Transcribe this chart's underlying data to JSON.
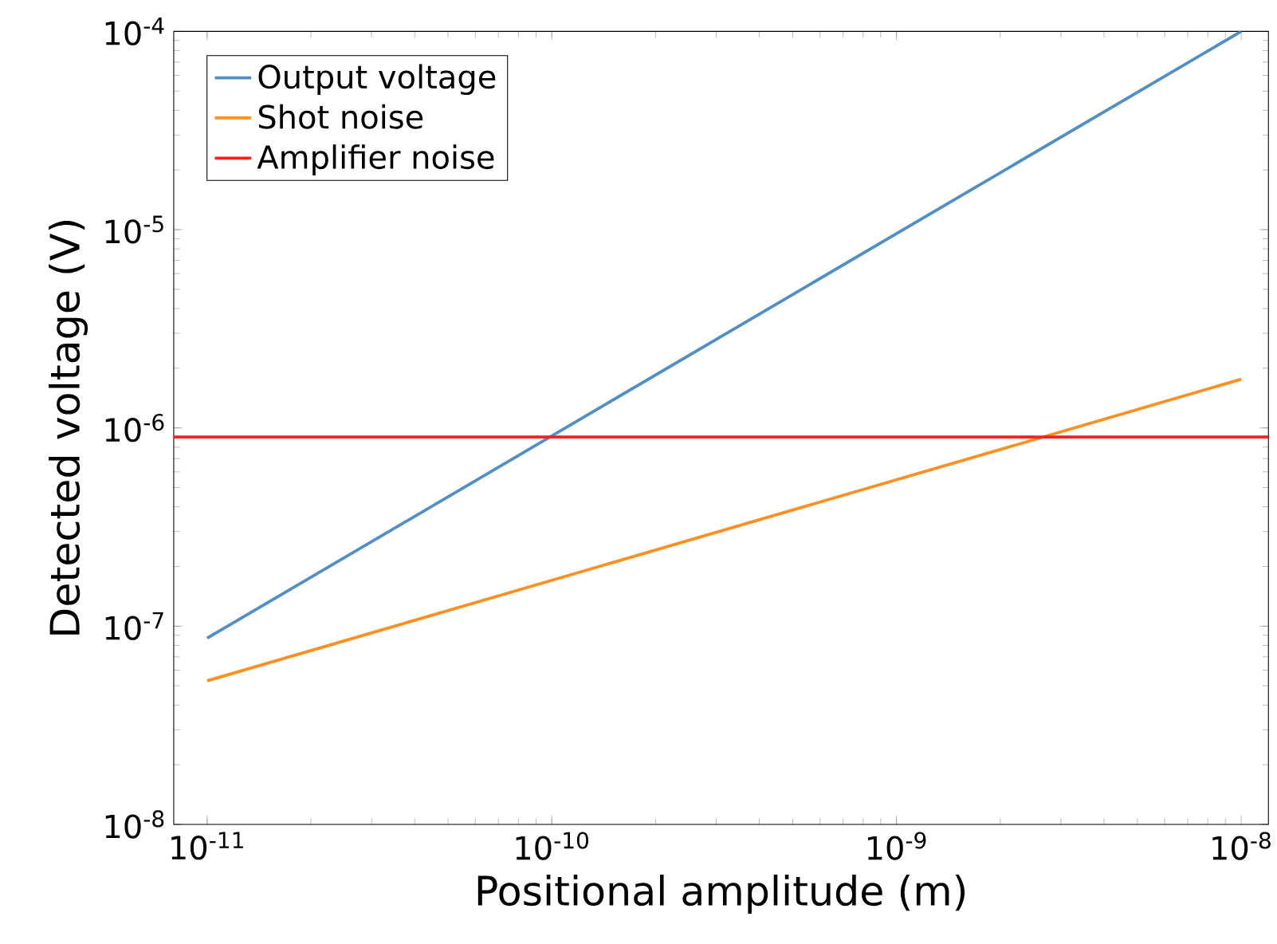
{
  "chart_data": {
    "type": "line",
    "xlabel": "Positional amplitude (m)",
    "ylabel": "Detected voltage (V)",
    "log": "xy",
    "legend": "top left",
    "grid": false,
    "line_style": "solid",
    "marker": "none",
    "xlim": [
      8e-12,
      1.2e-08
    ],
    "ylim": [
      1e-08,
      0.0001
    ],
    "xticks": [
      {
        "value": 1e-11,
        "label": "10$^{-11}$"
      },
      {
        "value": 1e-10,
        "label": "10$^{-10}$"
      },
      {
        "value": 1e-09,
        "label": "10$^{-9}$"
      },
      {
        "value": 1e-08,
        "label": "10$^{-8}$"
      }
    ],
    "yticks": [
      {
        "value": 1e-08,
        "label": "10$^{-8}$"
      },
      {
        "value": 1e-07,
        "label": "10$^{-7}$"
      },
      {
        "value": 1e-06,
        "label": "10$^{-6}$"
      },
      {
        "value": 1e-05,
        "label": "10$^{-5}$"
      },
      {
        "value": 0.0001,
        "label": "10$^{-4}$"
      }
    ],
    "series": [
      {
        "name": "Output voltage",
        "color": "#4f8fc7",
        "x": [
          1e-11,
          1e-08
        ],
        "values": [
          8.7e-08,
          0.0001
        ]
      },
      {
        "name": "Shot noise",
        "color": "#ff8f1f",
        "x": [
          1e-11,
          1e-08
        ],
        "values": [
          5.3e-08,
          1.76e-06
        ]
      },
      {
        "name": "Amplifier noise",
        "color": "#ff1f1f",
        "x": [
          8e-12,
          1.2e-08
        ],
        "values": [
          9e-07,
          9e-07
        ]
      }
    ]
  }
}
